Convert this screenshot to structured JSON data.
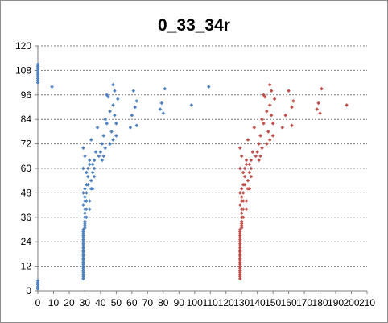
{
  "chart_data": {
    "type": "scatter",
    "title": "0_33_34r",
    "xlabel": "",
    "ylabel": "",
    "xlim": [
      0,
      210
    ],
    "ylim": [
      0,
      120
    ],
    "xticks": [
      0,
      10,
      20,
      30,
      40,
      50,
      60,
      70,
      80,
      90,
      100,
      110,
      120,
      130,
      140,
      150,
      160,
      170,
      180,
      190,
      200,
      210
    ],
    "yticks": [
      0,
      12,
      24,
      36,
      48,
      60,
      72,
      84,
      96,
      108,
      120
    ],
    "grid": {
      "horizontal": true,
      "vertical": false,
      "style": "dashed"
    },
    "legend": "none",
    "series": [
      {
        "color": "#4f81bd",
        "points": [
          [
            0,
            108
          ],
          [
            0,
            107
          ],
          [
            0,
            106
          ],
          [
            0,
            105
          ],
          [
            0,
            104
          ],
          [
            0,
            103
          ],
          [
            0,
            102
          ],
          [
            0,
            111
          ],
          [
            0,
            110
          ],
          [
            0,
            109
          ],
          [
            0,
            5
          ],
          [
            0,
            4
          ],
          [
            0,
            3
          ],
          [
            0,
            2
          ],
          [
            0,
            1
          ],
          [
            9,
            100
          ],
          [
            29,
            6
          ],
          [
            29,
            7
          ],
          [
            29,
            8
          ],
          [
            29,
            9
          ],
          [
            29,
            10
          ],
          [
            29,
            11
          ],
          [
            29,
            12
          ],
          [
            29,
            13
          ],
          [
            29,
            14
          ],
          [
            29,
            15
          ],
          [
            29,
            16
          ],
          [
            29,
            17
          ],
          [
            29,
            18
          ],
          [
            29,
            19
          ],
          [
            29,
            20
          ],
          [
            29,
            21
          ],
          [
            29,
            22
          ],
          [
            29,
            23
          ],
          [
            29,
            24
          ],
          [
            29,
            25
          ],
          [
            29,
            26
          ],
          [
            29,
            27
          ],
          [
            29,
            28
          ],
          [
            29,
            29
          ],
          [
            29,
            30
          ],
          [
            30,
            31
          ],
          [
            30,
            32
          ],
          [
            30,
            33
          ],
          [
            30,
            34
          ],
          [
            30,
            36
          ],
          [
            30,
            38
          ],
          [
            30,
            40
          ],
          [
            29,
            42
          ],
          [
            30,
            44
          ],
          [
            30,
            46
          ],
          [
            29,
            48
          ],
          [
            30,
            50
          ],
          [
            31,
            36
          ],
          [
            31,
            40
          ],
          [
            31,
            44
          ],
          [
            31,
            48
          ],
          [
            31,
            52
          ],
          [
            32,
            56
          ],
          [
            32,
            60
          ],
          [
            33,
            62
          ],
          [
            33,
            64
          ],
          [
            34,
            74
          ],
          [
            34,
            50
          ],
          [
            34,
            54
          ],
          [
            35,
            58
          ],
          [
            35,
            62
          ],
          [
            36,
            64
          ],
          [
            36,
            60
          ],
          [
            37,
            68
          ],
          [
            29,
            70
          ],
          [
            30,
            66
          ],
          [
            29,
            60
          ],
          [
            31,
            58
          ],
          [
            32,
            52
          ],
          [
            33,
            44
          ],
          [
            33,
            40
          ],
          [
            35,
            50
          ],
          [
            36,
            56
          ],
          [
            38,
            80
          ],
          [
            39,
            66
          ],
          [
            40,
            68
          ],
          [
            41,
            72
          ],
          [
            41,
            64
          ],
          [
            42,
            76
          ],
          [
            42,
            66
          ],
          [
            43,
            70
          ],
          [
            43,
            84
          ],
          [
            44,
            96
          ],
          [
            44,
            82
          ],
          [
            45,
            95
          ],
          [
            46,
            72
          ],
          [
            46,
            88
          ],
          [
            47,
            78
          ],
          [
            48,
            101
          ],
          [
            48,
            91
          ],
          [
            48,
            74
          ],
          [
            49,
            98
          ],
          [
            49,
            86
          ],
          [
            50,
            76
          ],
          [
            50,
            82
          ],
          [
            51,
            94
          ],
          [
            59,
            80
          ],
          [
            60,
            86
          ],
          [
            61,
            98
          ],
          [
            62,
            90
          ],
          [
            63,
            81
          ],
          [
            63,
            93
          ],
          [
            78,
            89
          ],
          [
            79,
            92
          ],
          [
            80,
            87
          ],
          [
            81,
            99
          ],
          [
            98,
            91
          ],
          [
            109,
            100
          ]
        ]
      },
      {
        "color": "#c0504d",
        "points": [
          [
            129,
            6
          ],
          [
            129,
            7
          ],
          [
            129,
            8
          ],
          [
            129,
            9
          ],
          [
            129,
            10
          ],
          [
            129,
            11
          ],
          [
            129,
            12
          ],
          [
            129,
            13
          ],
          [
            129,
            14
          ],
          [
            129,
            15
          ],
          [
            129,
            16
          ],
          [
            129,
            17
          ],
          [
            129,
            18
          ],
          [
            129,
            19
          ],
          [
            129,
            20
          ],
          [
            129,
            21
          ],
          [
            129,
            22
          ],
          [
            129,
            23
          ],
          [
            129,
            24
          ],
          [
            129,
            25
          ],
          [
            129,
            26
          ],
          [
            129,
            27
          ],
          [
            129,
            28
          ],
          [
            129,
            29
          ],
          [
            129,
            30
          ],
          [
            130,
            31
          ],
          [
            130,
            32
          ],
          [
            130,
            33
          ],
          [
            130,
            34
          ],
          [
            130,
            36
          ],
          [
            130,
            38
          ],
          [
            130,
            40
          ],
          [
            129,
            42
          ],
          [
            130,
            44
          ],
          [
            130,
            46
          ],
          [
            129,
            48
          ],
          [
            130,
            50
          ],
          [
            131,
            36
          ],
          [
            131,
            40
          ],
          [
            131,
            44
          ],
          [
            131,
            48
          ],
          [
            131,
            52
          ],
          [
            132,
            56
          ],
          [
            132,
            60
          ],
          [
            133,
            62
          ],
          [
            133,
            64
          ],
          [
            134,
            74
          ],
          [
            134,
            50
          ],
          [
            134,
            54
          ],
          [
            135,
            58
          ],
          [
            135,
            62
          ],
          [
            136,
            64
          ],
          [
            136,
            60
          ],
          [
            137,
            68
          ],
          [
            129,
            70
          ],
          [
            130,
            66
          ],
          [
            129,
            60
          ],
          [
            131,
            58
          ],
          [
            132,
            52
          ],
          [
            133,
            44
          ],
          [
            133,
            40
          ],
          [
            135,
            50
          ],
          [
            136,
            56
          ],
          [
            138,
            80
          ],
          [
            139,
            66
          ],
          [
            140,
            68
          ],
          [
            141,
            72
          ],
          [
            141,
            64
          ],
          [
            142,
            76
          ],
          [
            142,
            66
          ],
          [
            143,
            70
          ],
          [
            143,
            84
          ],
          [
            144,
            96
          ],
          [
            144,
            82
          ],
          [
            145,
            95
          ],
          [
            146,
            72
          ],
          [
            146,
            88
          ],
          [
            147,
            78
          ],
          [
            148,
            101
          ],
          [
            148,
            91
          ],
          [
            148,
            74
          ],
          [
            149,
            98
          ],
          [
            149,
            86
          ],
          [
            150,
            76
          ],
          [
            150,
            82
          ],
          [
            151,
            94
          ],
          [
            156,
            80
          ],
          [
            158,
            86
          ],
          [
            160,
            98
          ],
          [
            162,
            90
          ],
          [
            162,
            81
          ],
          [
            163,
            93
          ],
          [
            178,
            89
          ],
          [
            179,
            92
          ],
          [
            180,
            87
          ],
          [
            181,
            99
          ],
          [
            197,
            91
          ]
        ]
      }
    ]
  }
}
